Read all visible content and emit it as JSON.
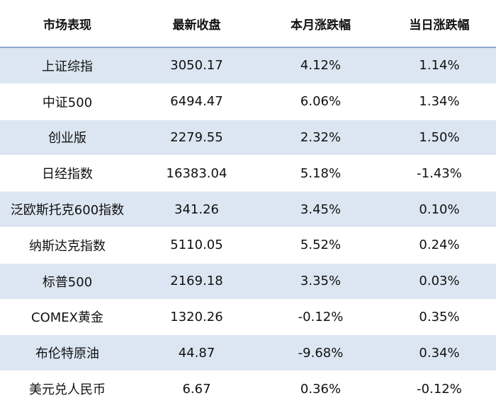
{
  "table": {
    "headers": [
      "市场表现",
      "最新收盘",
      "本月涨跌幅",
      "当日涨跌幅"
    ],
    "rows": [
      [
        "上证综指",
        "3050.17",
        "4.12%",
        "1.14%"
      ],
      [
        "中证500",
        "6494.47",
        "6.06%",
        "1.34%"
      ],
      [
        "创业版",
        "2279.55",
        "2.32%",
        "1.50%"
      ],
      [
        "日经指数",
        "16383.04",
        "5.18%",
        "-1.43%"
      ],
      [
        "泛欧斯托克600指数",
        "341.26",
        "3.45%",
        "0.10%"
      ],
      [
        "纳斯达克指数",
        "5110.05",
        "5.52%",
        "0.24%"
      ],
      [
        "标普500",
        "2169.18",
        "3.35%",
        "0.03%"
      ],
      [
        "COMEX黄金",
        "1320.26",
        "-0.12%",
        "0.35%"
      ],
      [
        "布伦特原油",
        "44.87",
        "-9.68%",
        "0.34%"
      ],
      [
        "美元兑人民币",
        "6.67",
        "0.36%",
        "-0.12%"
      ]
    ]
  },
  "colors": {
    "header_bg": "#ffffff",
    "shaded_row": "#dce6f2",
    "plain_row": "#ffffff",
    "header_rule": "#8ea9cf"
  }
}
